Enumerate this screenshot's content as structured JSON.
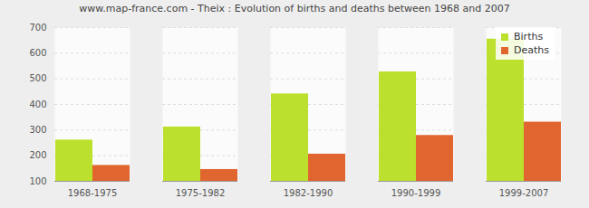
{
  "chart_data": {
    "type": "bar",
    "title": "www.map-france.com - Theix : Evolution of births and deaths between 1968 and 2007",
    "categories": [
      "1968-1975",
      "1975-1982",
      "1982-1990",
      "1990-1999",
      "1999-2007"
    ],
    "series": [
      {
        "name": "Births",
        "color": "#bbe02d",
        "values": [
          261,
          312,
          441,
          527,
          655
        ]
      },
      {
        "name": "Deaths",
        "color": "#e0652f",
        "values": [
          162,
          146,
          206,
          279,
          331
        ]
      }
    ],
    "ylim": [
      100,
      700
    ],
    "yticks": [
      100,
      200,
      300,
      400,
      500,
      600,
      700
    ],
    "grid": true,
    "legend": "top-right"
  }
}
